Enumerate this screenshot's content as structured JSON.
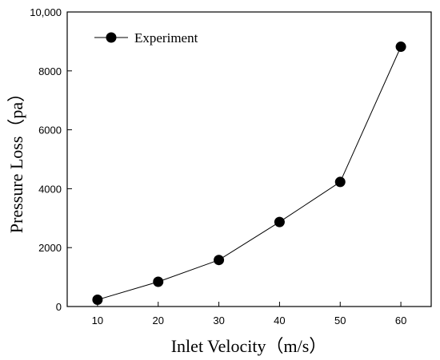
{
  "chart_data": {
    "type": "line",
    "xlabel": "Inlet Velocity（m/s）",
    "ylabel": "Pressure Loss（pa）",
    "x": [
      10,
      20,
      30,
      40,
      50,
      60
    ],
    "series": [
      {
        "name": "Experiment",
        "values": [
          230,
          840,
          1580,
          2870,
          4230,
          8820
        ]
      }
    ],
    "xlim": [
      5,
      65
    ],
    "ylim": [
      0,
      10000
    ],
    "xticks": [
      10,
      20,
      30,
      40,
      50,
      60
    ],
    "yticks": [
      0,
      2000,
      4000,
      6000,
      8000,
      10000
    ],
    "ytick_labels": [
      "0",
      "2000",
      "4000",
      "6000",
      "8000",
      "10,000"
    ],
    "xtick_labels": [
      "10",
      "20",
      "30",
      "40",
      "50",
      "60"
    ],
    "grid": false,
    "legend_position": "top-left",
    "marker": "filled-circle",
    "colors": {
      "line": "#000000",
      "marker": "#000000",
      "axis": "#000000"
    }
  }
}
